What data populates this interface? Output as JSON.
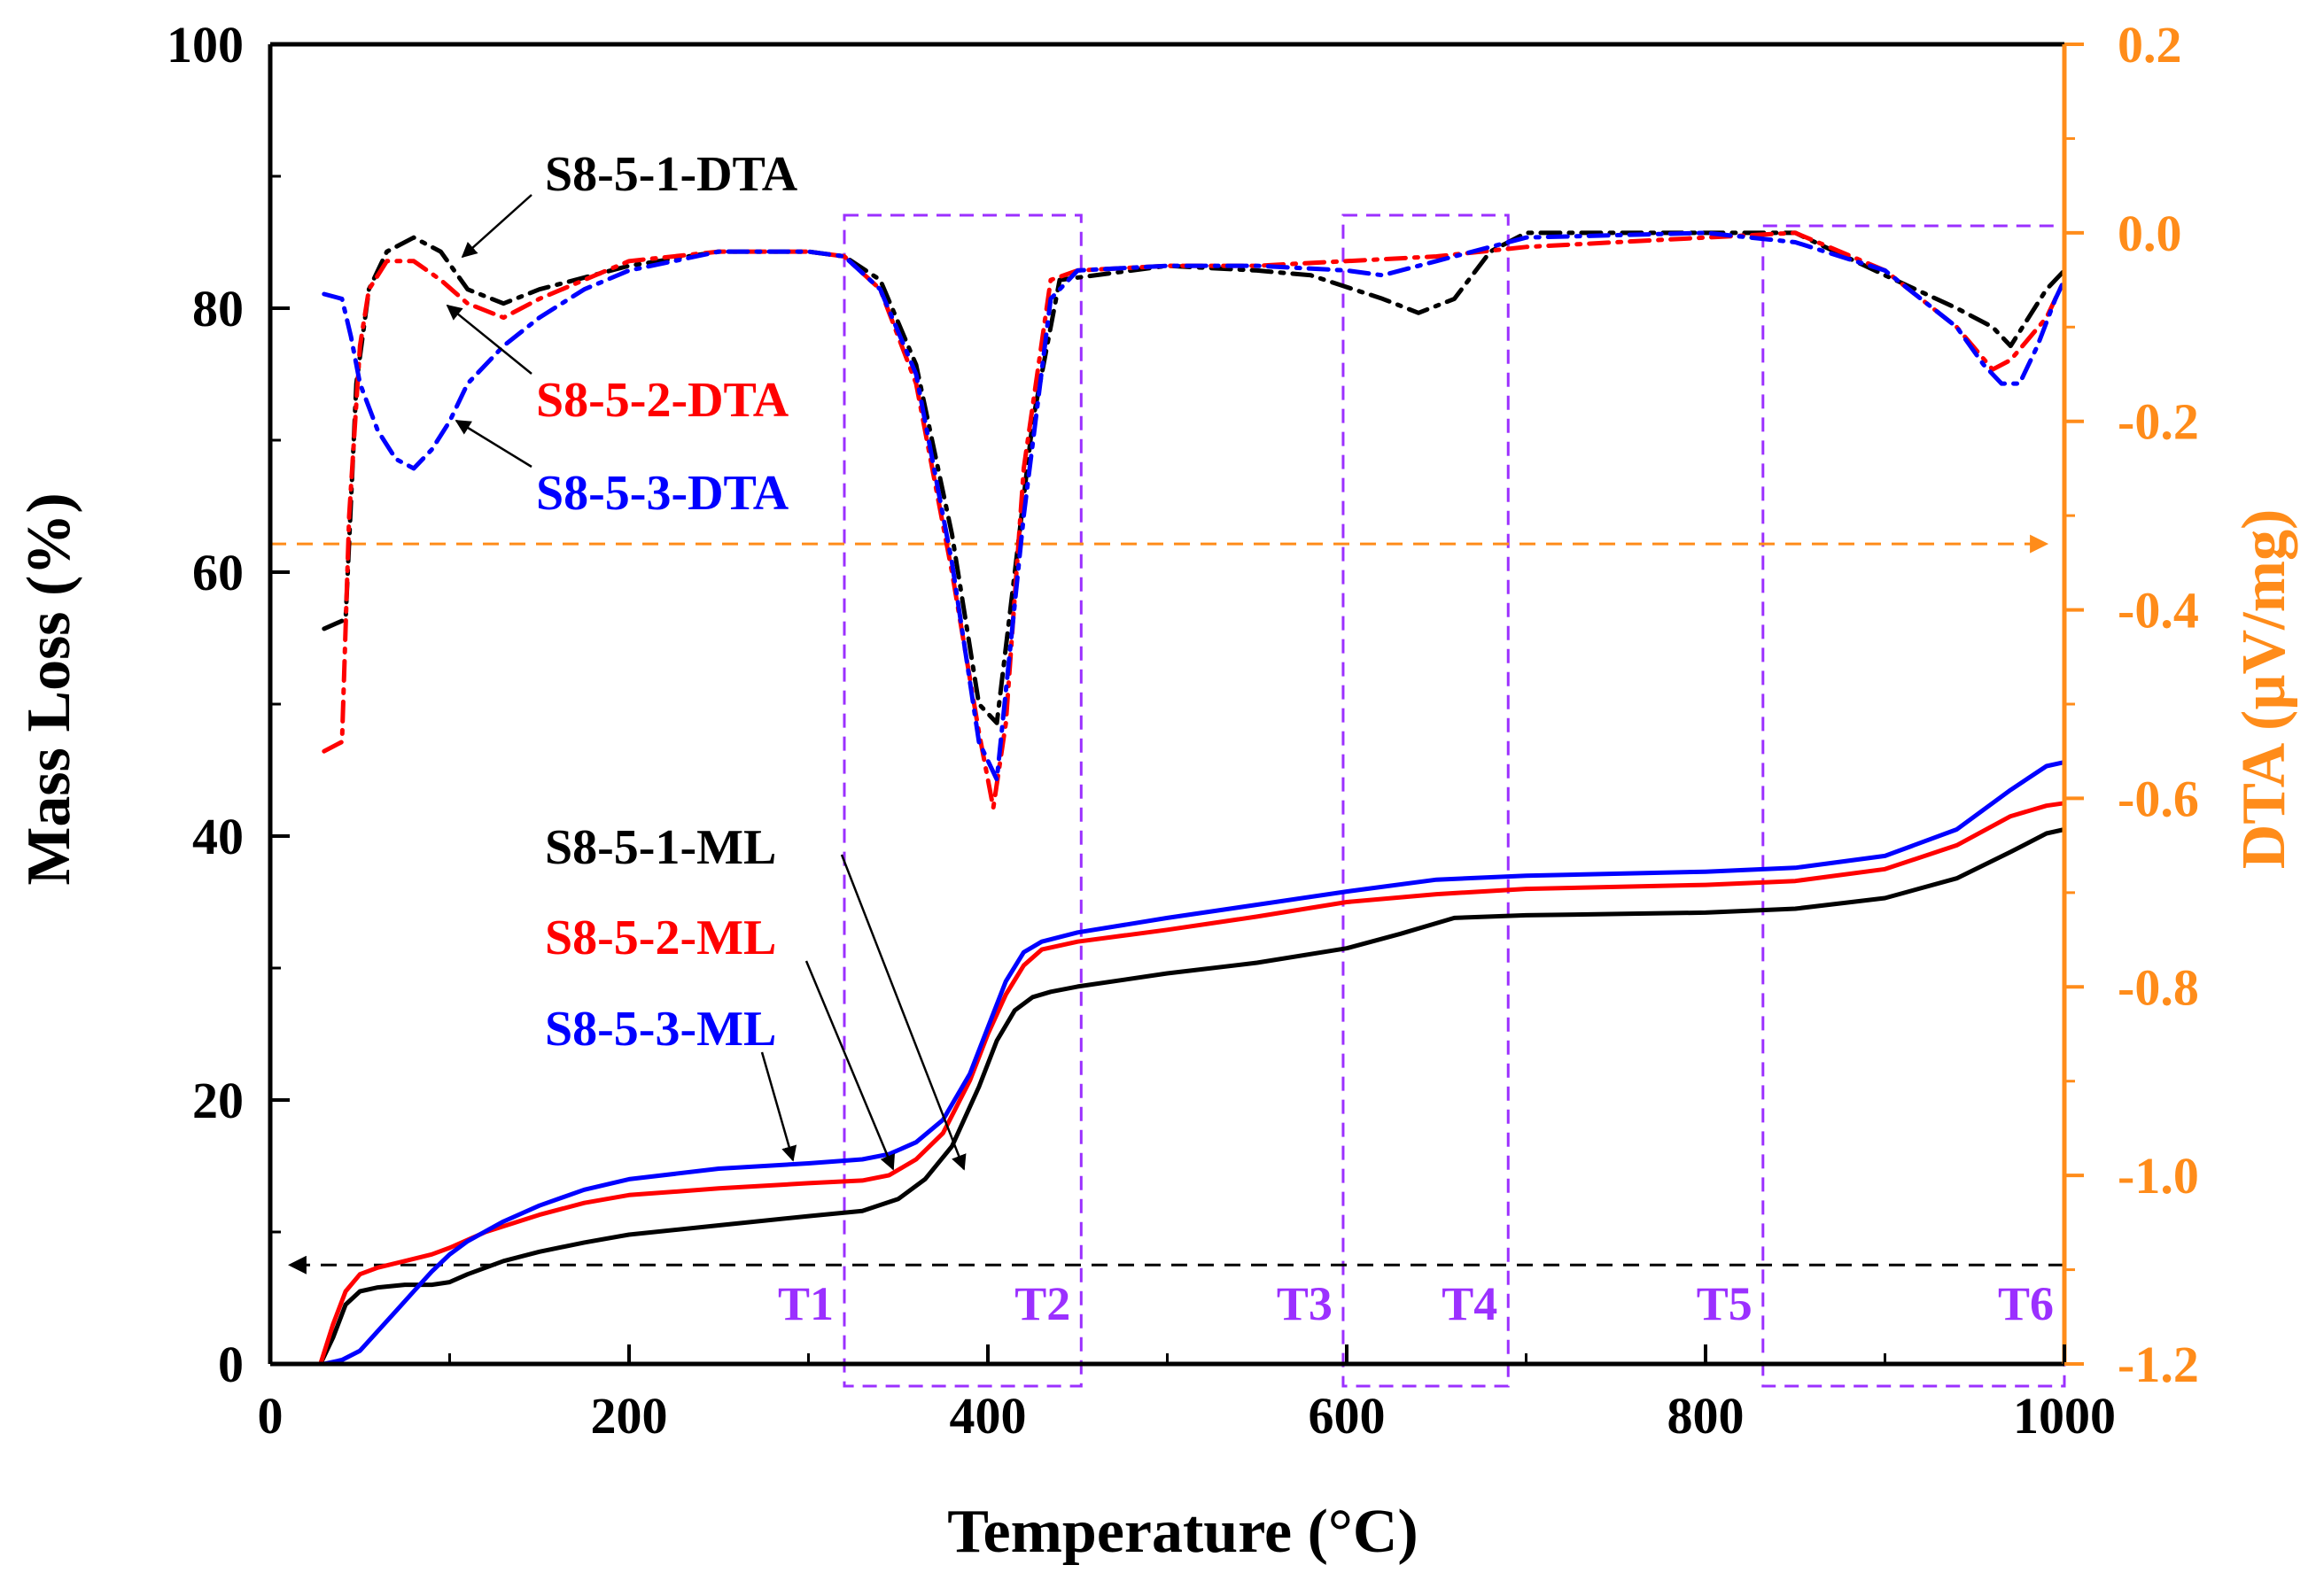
{
  "chart_data": {
    "type": "line",
    "title": "",
    "xlabel": "Temperature (°C)",
    "ylabel_left": "Mass Loss (%)",
    "ylabel_right": "DTA (µV/mg)",
    "xlim": [
      0,
      1000
    ],
    "ylim_left": [
      0,
      100
    ],
    "ylim_right": [
      -1.2,
      0.2
    ],
    "x_ticks": [
      "0",
      "200",
      "400",
      "600",
      "800",
      "1000"
    ],
    "y_left_ticks": [
      "0",
      "20",
      "40",
      "60",
      "80",
      "100"
    ],
    "y_right_ticks": [
      "-1.2",
      "-1.0",
      "-0.8",
      "-0.6",
      "-0.4",
      "-0.2",
      "0.0",
      "0.2"
    ],
    "colors": {
      "s1": "#000000",
      "s2": "#ff0000",
      "s3": "#0000ff",
      "dta_axis": "#ff8c1a",
      "zone": "#9b30ff"
    },
    "series": [
      {
        "name": "S8-5-1-ML",
        "axis": "left",
        "color": "#000000",
        "style": "solid",
        "x": [
          28,
          35,
          42,
          50,
          60,
          75,
          90,
          100,
          110,
          130,
          150,
          175,
          200,
          250,
          300,
          330,
          350,
          365,
          380,
          395,
          405,
          415,
          425,
          435,
          450,
          500,
          550,
          600,
          630,
          660,
          700,
          800,
          850,
          900,
          940,
          970,
          990,
          1000
        ],
        "y": [
          0,
          2,
          4.5,
          5.5,
          5.8,
          6,
          6,
          6.2,
          6.8,
          7.8,
          8.5,
          9.2,
          9.8,
          10.5,
          11.2,
          11.6,
          12.5,
          14,
          16.5,
          21,
          24.5,
          26.8,
          27.8,
          28.2,
          28.6,
          29.6,
          30.4,
          31.5,
          32.6,
          33.8,
          34,
          34.2,
          34.5,
          35.3,
          36.8,
          38.8,
          40.2,
          40.5
        ]
      },
      {
        "name": "S8-5-2-ML",
        "axis": "left",
        "color": "#ff0000",
        "style": "solid",
        "x": [
          28,
          35,
          42,
          50,
          60,
          75,
          90,
          100,
          120,
          150,
          175,
          200,
          250,
          300,
          330,
          345,
          360,
          375,
          390,
          400,
          410,
          420,
          430,
          450,
          500,
          550,
          600,
          650,
          700,
          800,
          850,
          900,
          940,
          970,
          990,
          1000
        ],
        "y": [
          0,
          3,
          5.5,
          6.8,
          7.3,
          7.8,
          8.3,
          8.8,
          10,
          11.3,
          12.2,
          12.8,
          13.3,
          13.7,
          13.9,
          14.3,
          15.5,
          17.5,
          21.5,
          25,
          28,
          30.2,
          31.4,
          32,
          32.9,
          33.9,
          35,
          35.6,
          36,
          36.3,
          36.6,
          37.5,
          39.3,
          41.5,
          42.3,
          42.5
        ]
      },
      {
        "name": "S8-5-3-ML",
        "axis": "left",
        "color": "#0000ff",
        "style": "solid",
        "x": [
          30,
          40,
          50,
          60,
          70,
          80,
          90,
          100,
          110,
          130,
          150,
          175,
          200,
          250,
          300,
          330,
          345,
          360,
          375,
          390,
          400,
          410,
          420,
          430,
          450,
          500,
          550,
          600,
          650,
          700,
          800,
          850,
          900,
          940,
          970,
          990,
          1000
        ],
        "y": [
          0,
          0.3,
          1,
          2.5,
          4,
          5.5,
          7,
          8.3,
          9.3,
          10.8,
          12,
          13.2,
          14,
          14.8,
          15.2,
          15.5,
          15.9,
          16.8,
          18.5,
          22,
          25.5,
          29,
          31.2,
          32,
          32.7,
          33.8,
          34.8,
          35.8,
          36.7,
          37,
          37.3,
          37.6,
          38.5,
          40.5,
          43.5,
          45.3,
          45.6
        ]
      },
      {
        "name": "S8-5-1-DTA",
        "axis": "right",
        "color": "#000000",
        "style": "dashdot",
        "x": [
          30,
          42,
          48,
          55,
          65,
          80,
          95,
          110,
          130,
          150,
          200,
          250,
          280,
          300,
          320,
          340,
          360,
          380,
          395,
          405,
          415,
          425,
          440,
          500,
          550,
          580,
          620,
          640,
          660,
          680,
          700,
          800,
          850,
          900,
          940,
          960,
          970,
          990,
          1000
        ],
        "y": [
          -0.42,
          -0.41,
          -0.16,
          -0.06,
          -0.02,
          -0.005,
          -0.02,
          -0.06,
          -0.075,
          -0.06,
          -0.035,
          -0.02,
          -0.02,
          -0.02,
          -0.025,
          -0.05,
          -0.14,
          -0.32,
          -0.5,
          -0.52,
          -0.36,
          -0.2,
          -0.05,
          -0.035,
          -0.04,
          -0.045,
          -0.07,
          -0.085,
          -0.07,
          -0.02,
          0,
          0,
          0,
          -0.045,
          -0.08,
          -0.1,
          -0.12,
          -0.06,
          -0.04
        ]
      },
      {
        "name": "S8-5-2-DTA",
        "axis": "right",
        "color": "#ff0000",
        "style": "dashdot",
        "x": [
          30,
          40,
          44,
          50,
          55,
          65,
          80,
          95,
          110,
          130,
          150,
          200,
          250,
          300,
          320,
          340,
          360,
          380,
          395,
          403,
          410,
          420,
          435,
          450,
          500,
          550,
          600,
          650,
          700,
          800,
          850,
          900,
          940,
          960,
          970,
          990,
          1000
        ],
        "y": [
          -0.55,
          -0.54,
          -0.3,
          -0.12,
          -0.06,
          -0.03,
          -0.03,
          -0.05,
          -0.075,
          -0.09,
          -0.07,
          -0.03,
          -0.02,
          -0.02,
          -0.025,
          -0.06,
          -0.16,
          -0.36,
          -0.53,
          -0.61,
          -0.52,
          -0.25,
          -0.05,
          -0.04,
          -0.035,
          -0.035,
          -0.03,
          -0.025,
          -0.015,
          -0.005,
          0,
          -0.04,
          -0.1,
          -0.145,
          -0.135,
          -0.09,
          -0.05
        ]
      },
      {
        "name": "S8-5-3-DTA",
        "axis": "right",
        "color": "#0000ff",
        "style": "dashdot",
        "x": [
          30,
          40,
          45,
          50,
          60,
          70,
          80,
          90,
          100,
          110,
          130,
          150,
          175,
          200,
          250,
          300,
          320,
          340,
          360,
          380,
          395,
          405,
          420,
          435,
          450,
          500,
          550,
          600,
          620,
          650,
          700,
          800,
          850,
          900,
          940,
          955,
          965,
          975,
          985,
          995,
          1000
        ],
        "y": [
          -0.065,
          -0.07,
          -0.11,
          -0.16,
          -0.21,
          -0.24,
          -0.25,
          -0.23,
          -0.2,
          -0.16,
          -0.12,
          -0.09,
          -0.06,
          -0.04,
          -0.02,
          -0.02,
          -0.025,
          -0.06,
          -0.15,
          -0.35,
          -0.54,
          -0.58,
          -0.3,
          -0.07,
          -0.04,
          -0.035,
          -0.035,
          -0.04,
          -0.045,
          -0.03,
          -0.005,
          0,
          -0.01,
          -0.04,
          -0.1,
          -0.14,
          -0.16,
          -0.16,
          -0.12,
          -0.07,
          -0.05
        ]
      }
    ],
    "annotations": [
      {
        "label": "S8-5-1-DTA",
        "color": "#000000"
      },
      {
        "label": "S8-5-2-DTA",
        "color": "#ff0000"
      },
      {
        "label": "S8-5-3-DTA",
        "color": "#0000ff"
      },
      {
        "label": "S8-5-1-ML",
        "color": "#000000"
      },
      {
        "label": "S8-5-2-ML",
        "color": "#ff0000"
      },
      {
        "label": "S8-5-3-ML",
        "color": "#0000ff"
      }
    ],
    "zones": [
      {
        "label": "T1",
        "x_start": 320,
        "x_end": 452
      },
      {
        "label": "T2",
        "x_start": 320,
        "x_end": 452
      },
      {
        "label": "T3",
        "x_start": 598,
        "x_end": 690
      },
      {
        "label": "T4",
        "x_start": 598,
        "x_end": 690
      },
      {
        "label": "T5",
        "x_start": 832,
        "x_end": 1000
      },
      {
        "label": "T6",
        "x_start": 832,
        "x_end": 1000
      }
    ],
    "axis_indicators": [
      {
        "name": "ml-axis-indicator",
        "axis": "left",
        "y_value": 7.5,
        "direction": "left",
        "color": "#000000"
      },
      {
        "name": "dta-axis-indicator",
        "axis": "right",
        "y_value": -0.33,
        "direction": "right",
        "color": "#ff8c1a"
      }
    ],
    "grid": false,
    "legend": "inline annotations"
  }
}
